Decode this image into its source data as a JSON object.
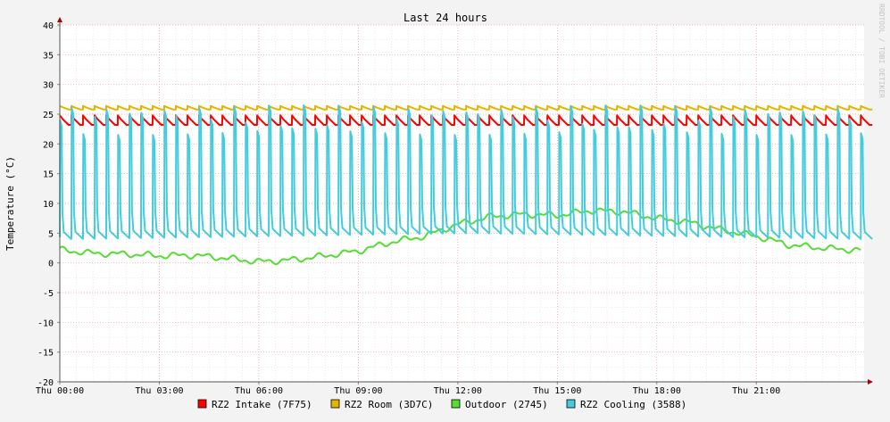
{
  "chart_data": {
    "type": "line",
    "title": "Last 24 hours",
    "ylabel": "Temperature (°C)",
    "xlabel": "",
    "watermark": "RRDTOOL / TOBI OETIKER",
    "ylim": [
      -20,
      40
    ],
    "yticks": [
      -20,
      -15,
      -10,
      -5,
      0,
      5,
      10,
      15,
      20,
      25,
      30,
      35,
      40
    ],
    "xlim_hours": [
      0,
      24.25
    ],
    "xticks": [
      {
        "hour": 0,
        "label": "Thu 00:00"
      },
      {
        "hour": 3,
        "label": "Thu 03:00"
      },
      {
        "hour": 6,
        "label": "Thu 06:00"
      },
      {
        "hour": 9,
        "label": "Thu 09:00"
      },
      {
        "hour": 12,
        "label": "Thu 12:00"
      },
      {
        "hour": 15,
        "label": "Thu 15:00"
      },
      {
        "hour": 18,
        "label": "Thu 18:00"
      },
      {
        "hour": 21,
        "label": "Thu 21:00"
      }
    ],
    "grid": true,
    "legend_position": "bottom",
    "series": [
      {
        "name": "RZ2 Intake (7F75)",
        "color": "#ff0000",
        "pattern": {
          "kind": "sawtooth",
          "low": 23.2,
          "high": 24.8,
          "period_hours": 0.35
        }
      },
      {
        "name": "RZ2 Room (3D7C)",
        "color": "#e6b400",
        "pattern": {
          "kind": "sawtooth",
          "low": 25.8,
          "high": 26.4,
          "period_hours": 0.35
        }
      },
      {
        "name": "Outdoor (2745)",
        "color": "#55dd33",
        "x": [
          0,
          1,
          2,
          3,
          4,
          5,
          6,
          7,
          8,
          9,
          10,
          11,
          12,
          13,
          14,
          15,
          16,
          17,
          18,
          19,
          20,
          21,
          22,
          23,
          24.2
        ],
        "y": [
          2.2,
          1.6,
          1.5,
          1.2,
          1.3,
          0.8,
          0.2,
          0.5,
          1.2,
          2.0,
          3.5,
          4.5,
          6.5,
          7.8,
          8.2,
          8.0,
          8.8,
          8.6,
          7.5,
          6.8,
          5.5,
          4.5,
          3.0,
          2.5,
          2.1
        ]
      },
      {
        "name": "RZ2 Cooling (3588)",
        "color": "#44ccdd",
        "pattern": {
          "kind": "spikes",
          "base_start": 4.0,
          "base_mid": 5.0,
          "base_end": 4.0,
          "peak_low": 21.5,
          "peak_high": 26.5,
          "period_hours": 0.35
        }
      }
    ]
  }
}
